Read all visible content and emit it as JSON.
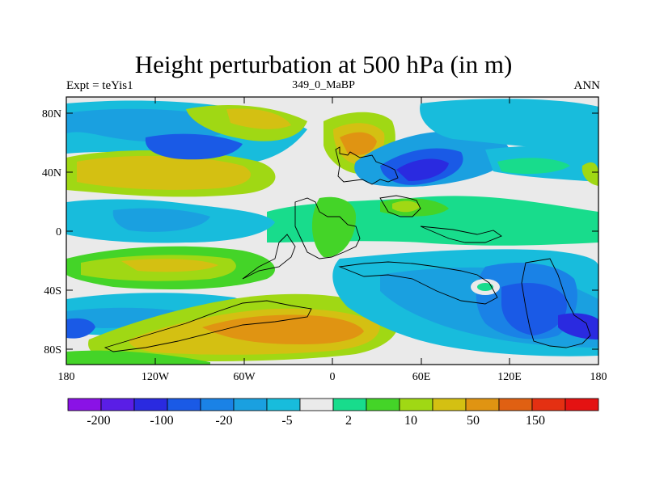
{
  "title": "Height perturbation at 500 hPa (in m)",
  "left_string": "Expt = teYis1",
  "center_string": "349_0_MaBP",
  "right_string": "ANN",
  "lat_ticks": [
    "80N",
    "40N",
    "0",
    "40S",
    "80S"
  ],
  "lon_ticks": [
    "180",
    "120W",
    "60W",
    "0",
    "60E",
    "120E",
    "180"
  ],
  "colorbar": {
    "labels": [
      "-200",
      "-100",
      "-20",
      "-5",
      "2",
      "10",
      "50",
      "150"
    ],
    "colors": [
      "#8a12e6",
      "#5a1ee6",
      "#2a2ae0",
      "#1a5ae6",
      "#1a82e6",
      "#1aa0e0",
      "#18bcdc",
      "#eaeaea",
      "#18dc8c",
      "#44d428",
      "#a0d814",
      "#d4c012",
      "#e09412",
      "#e06012",
      "#e43012",
      "#e41212"
    ]
  },
  "chart_data": {
    "type": "heatmap",
    "title": "Height perturbation at 500 hPa (in m)",
    "variable": "500 hPa geopotential height perturbation",
    "units": "m",
    "xlabel": "",
    "ylabel": "",
    "lon_range": [
      -180,
      180
    ],
    "lat_range": [
      -90,
      90
    ],
    "contour_levels": [
      -200,
      -150,
      -100,
      -50,
      -20,
      -10,
      -5,
      -2,
      2,
      5,
      10,
      20,
      50,
      100,
      150,
      200
    ],
    "labelled_levels": [
      -200,
      -100,
      -20,
      -5,
      2,
      10,
      50,
      150
    ],
    "notes": "Positive anomalies over mid-latitude oceans and southern landmass, negative anomalies poleward; near-zero band in tropics"
  }
}
